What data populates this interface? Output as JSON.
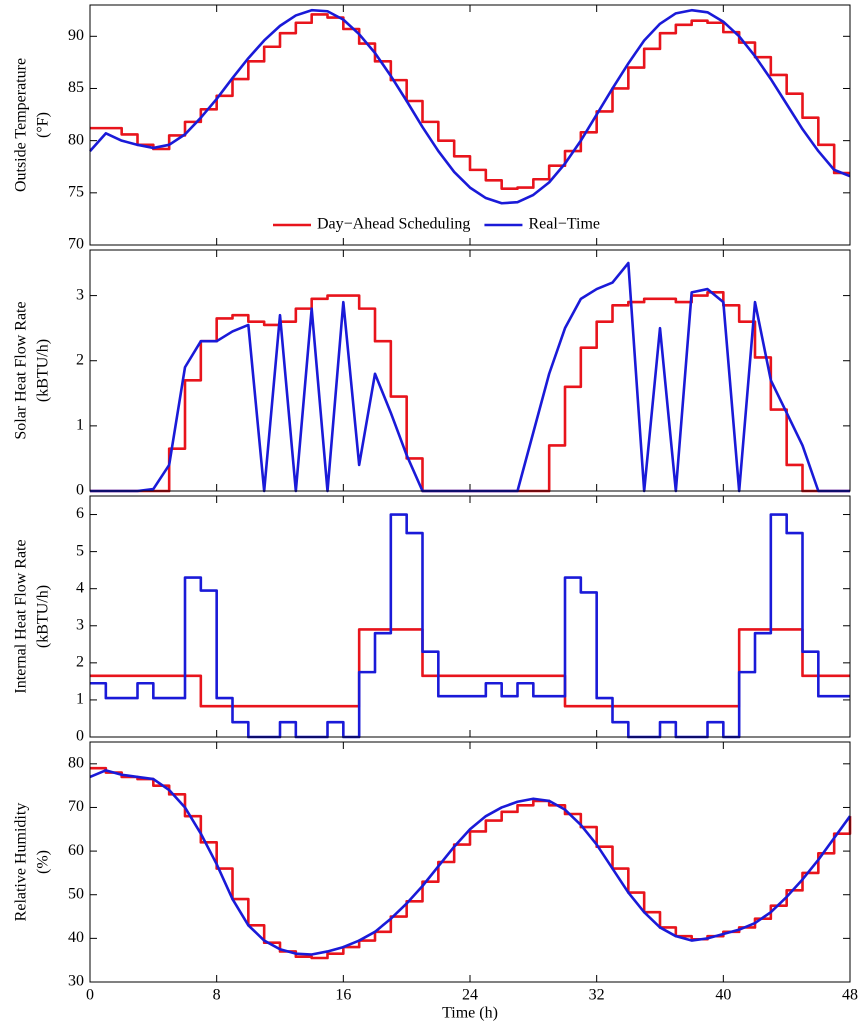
{
  "chart_data": [
    {
      "type": "line",
      "ylabel": [
        "Outside Temperature",
        "(°F)"
      ],
      "xlim": [
        0,
        48
      ],
      "xticks": [
        0,
        8,
        16,
        24,
        32,
        40,
        48
      ],
      "ylim": [
        70,
        93
      ],
      "yticks": [
        70,
        75,
        80,
        85,
        90
      ],
      "legend": "lower center",
      "x": [
        0,
        1,
        2,
        3,
        4,
        5,
        6,
        7,
        8,
        9,
        10,
        11,
        12,
        13,
        14,
        15,
        16,
        17,
        18,
        19,
        20,
        21,
        22,
        23,
        24,
        25,
        26,
        27,
        28,
        29,
        30,
        31,
        32,
        33,
        34,
        35,
        36,
        37,
        38,
        39,
        40,
        41,
        42,
        43,
        44,
        45,
        46,
        47,
        48
      ],
      "series": [
        {
          "name": "Day−Ahead Scheduling",
          "color": "#e8141c",
          "step": true,
          "values": [
            81.2,
            81.2,
            80.6,
            79.6,
            79.2,
            80.5,
            81.8,
            83.0,
            84.3,
            85.9,
            87.6,
            89.0,
            90.3,
            91.3,
            92.1,
            91.8,
            90.7,
            89.3,
            87.6,
            85.8,
            83.8,
            81.8,
            80.0,
            78.5,
            77.2,
            76.2,
            75.4,
            75.5,
            76.3,
            77.6,
            79.0,
            80.8,
            82.8,
            85.0,
            87.0,
            88.8,
            90.3,
            91.1,
            91.5,
            91.3,
            90.4,
            89.4,
            88.0,
            86.3,
            84.5,
            82.2,
            79.6,
            76.9,
            76.9
          ]
        },
        {
          "name": "Real−Time",
          "color": "#1a1ad8",
          "step": false,
          "values": [
            79.0,
            80.7,
            80.0,
            79.6,
            79.3,
            79.6,
            80.6,
            82.2,
            84.0,
            86.0,
            87.9,
            89.6,
            91.0,
            92.0,
            92.5,
            92.4,
            91.6,
            90.2,
            88.4,
            86.2,
            83.8,
            81.3,
            79.0,
            77.0,
            75.5,
            74.5,
            74.0,
            74.1,
            74.8,
            76.0,
            77.8,
            80.0,
            82.5,
            85.0,
            87.4,
            89.6,
            91.2,
            92.2,
            92.5,
            92.3,
            91.4,
            90.0,
            88.1,
            85.9,
            83.5,
            81.1,
            79.0,
            77.2,
            76.6
          ]
        }
      ]
    },
    {
      "type": "line",
      "ylabel": [
        "Solar Heat Flow Rate",
        "(kBTU/h)"
      ],
      "xlim": [
        0,
        48
      ],
      "xticks": [
        0,
        8,
        16,
        24,
        32,
        40,
        48
      ],
      "ylim": [
        0,
        3.7
      ],
      "yticks": [
        0,
        1,
        2,
        3
      ],
      "x": [
        0,
        1,
        2,
        3,
        4,
        5,
        6,
        7,
        8,
        9,
        10,
        11,
        12,
        13,
        14,
        15,
        16,
        17,
        18,
        19,
        20,
        21,
        22,
        23,
        24,
        25,
        26,
        27,
        28,
        29,
        30,
        31,
        32,
        33,
        34,
        35,
        36,
        37,
        38,
        39,
        40,
        41,
        42,
        43,
        44,
        45,
        46,
        47,
        48
      ],
      "series": [
        {
          "color": "#e8141c",
          "step": true,
          "values": [
            0,
            0,
            0,
            0,
            0,
            0.65,
            1.7,
            2.3,
            2.65,
            2.7,
            2.6,
            2.55,
            2.6,
            2.8,
            2.95,
            3.0,
            3.0,
            2.8,
            2.3,
            1.45,
            0.5,
            0,
            0,
            0,
            0,
            0,
            0,
            0,
            0,
            0.7,
            1.6,
            2.2,
            2.6,
            2.85,
            2.9,
            2.95,
            2.95,
            2.9,
            3.0,
            3.05,
            2.85,
            2.6,
            2.05,
            1.25,
            0.4,
            0,
            0,
            0,
            0
          ]
        },
        {
          "color": "#1a1ad8",
          "step": false,
          "values": [
            0,
            0,
            0,
            0,
            0.03,
            0.4,
            1.9,
            2.3,
            2.3,
            2.45,
            2.55,
            0,
            2.7,
            0,
            2.8,
            0,
            2.9,
            0.4,
            1.8,
            1.2,
            0.55,
            0,
            0,
            0,
            0,
            0,
            0,
            0,
            0.9,
            1.8,
            2.5,
            2.95,
            3.1,
            3.2,
            3.5,
            0,
            2.5,
            0,
            3.05,
            3.1,
            2.9,
            0,
            2.9,
            1.7,
            1.2,
            0.7,
            0,
            0,
            0
          ]
        }
      ]
    },
    {
      "type": "line",
      "ylabel": [
        "Internal Heat Flow Rate",
        "(kBTU/h)"
      ],
      "xlim": [
        0,
        48
      ],
      "xticks": [
        0,
        8,
        16,
        24,
        32,
        40,
        48
      ],
      "ylim": [
        0,
        6.5
      ],
      "yticks": [
        0,
        1,
        2,
        3,
        4,
        5,
        6
      ],
      "x": [
        0,
        1,
        2,
        3,
        4,
        5,
        6,
        7,
        8,
        9,
        10,
        11,
        12,
        13,
        14,
        15,
        16,
        17,
        18,
        19,
        20,
        21,
        22,
        23,
        24,
        25,
        26,
        27,
        28,
        29,
        30,
        31,
        32,
        33,
        34,
        35,
        36,
        37,
        38,
        39,
        40,
        41,
        42,
        43,
        44,
        45,
        46,
        47,
        48
      ],
      "series": [
        {
          "color": "#e8141c",
          "step": true,
          "values": [
            1.65,
            1.65,
            1.65,
            1.65,
            1.65,
            1.65,
            1.65,
            0.83,
            0.83,
            0.83,
            0.83,
            0.83,
            0.83,
            0.83,
            0.83,
            0.83,
            0.83,
            2.9,
            2.9,
            2.9,
            2.9,
            1.65,
            1.65,
            1.65,
            1.65,
            1.65,
            1.65,
            1.65,
            1.65,
            1.65,
            0.83,
            0.83,
            0.83,
            0.83,
            0.83,
            0.83,
            0.83,
            0.83,
            0.83,
            0.83,
            0.83,
            2.9,
            2.9,
            2.9,
            2.9,
            1.65,
            1.65,
            1.65,
            1.65
          ]
        },
        {
          "color": "#1a1ad8",
          "step": true,
          "values": [
            1.45,
            1.05,
            1.05,
            1.45,
            1.05,
            1.05,
            4.3,
            3.95,
            1.05,
            0.4,
            0,
            0,
            0.4,
            0,
            0,
            0.4,
            0,
            1.75,
            2.8,
            6.0,
            5.5,
            2.3,
            1.1,
            1.1,
            1.1,
            1.45,
            1.1,
            1.45,
            1.1,
            1.1,
            4.3,
            3.9,
            1.05,
            0.4,
            0,
            0,
            0.4,
            0,
            0,
            0.4,
            0,
            1.75,
            2.8,
            6.0,
            5.5,
            2.3,
            1.1,
            1.1,
            1.1
          ]
        }
      ]
    },
    {
      "type": "line",
      "ylabel": [
        "Relative Humidity",
        "(%)"
      ],
      "xlabel": "Time (h)",
      "xlim": [
        0,
        48
      ],
      "xticks": [
        0,
        8,
        16,
        24,
        32,
        40,
        48
      ],
      "ylim": [
        30,
        85
      ],
      "yticks": [
        30,
        40,
        50,
        60,
        70,
        80
      ],
      "x": [
        0,
        1,
        2,
        3,
        4,
        5,
        6,
        7,
        8,
        9,
        10,
        11,
        12,
        13,
        14,
        15,
        16,
        17,
        18,
        19,
        20,
        21,
        22,
        23,
        24,
        25,
        26,
        27,
        28,
        29,
        30,
        31,
        32,
        33,
        34,
        35,
        36,
        37,
        38,
        39,
        40,
        41,
        42,
        43,
        44,
        45,
        46,
        47,
        48
      ],
      "series": [
        {
          "color": "#e8141c",
          "step": true,
          "values": [
            79,
            78,
            77,
            76.5,
            75,
            73,
            68,
            62,
            56,
            49,
            43,
            39,
            37,
            35.8,
            35.5,
            36.5,
            38,
            39.5,
            41.5,
            45,
            48.5,
            53,
            57.5,
            61.5,
            64.5,
            67,
            69,
            70.5,
            71.5,
            70.5,
            68.5,
            65.5,
            61,
            56,
            50.5,
            46,
            42.5,
            40.5,
            39.8,
            40.5,
            41.5,
            42.5,
            44.5,
            47.5,
            51,
            55,
            59.5,
            64,
            68
          ]
        },
        {
          "color": "#1a1ad8",
          "step": false,
          "values": [
            77,
            78.5,
            77.5,
            77,
            76.5,
            74,
            70,
            64,
            57,
            49,
            43,
            39.5,
            37.5,
            36.5,
            36.3,
            37,
            38,
            39.5,
            41.5,
            44.5,
            48,
            52,
            56.5,
            61,
            65,
            68,
            70,
            71.3,
            72,
            71.5,
            69.5,
            66,
            61.5,
            56,
            50.5,
            46,
            42.5,
            40.5,
            39.5,
            40,
            41,
            42,
            43.5,
            46,
            49.5,
            53.5,
            58,
            63,
            68
          ]
        }
      ]
    }
  ]
}
